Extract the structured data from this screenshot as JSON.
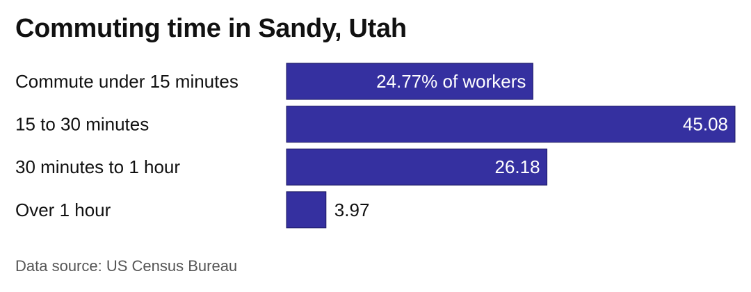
{
  "title": "Commuting time in Sandy, Utah",
  "source": "Data source: US Census Bureau",
  "colors": {
    "bar": "#3530a0",
    "bar_stroke": "#1a1760",
    "label_inside": "#ffffff",
    "label_outside": "#111111",
    "category_text": "#111111"
  },
  "chart_data": {
    "type": "bar",
    "orientation": "horizontal",
    "categories": [
      "Commute under 15 minutes",
      "15 to 30 minutes",
      "30 minutes to 1 hour",
      "Over 1 hour"
    ],
    "values": [
      24.77,
      45.08,
      26.18,
      3.97
    ],
    "data_labels": [
      "24.77% of workers",
      "45.08",
      "26.18",
      "3.97"
    ],
    "xlim": [
      0,
      45.08
    ],
    "grid": false,
    "legend": "none"
  }
}
